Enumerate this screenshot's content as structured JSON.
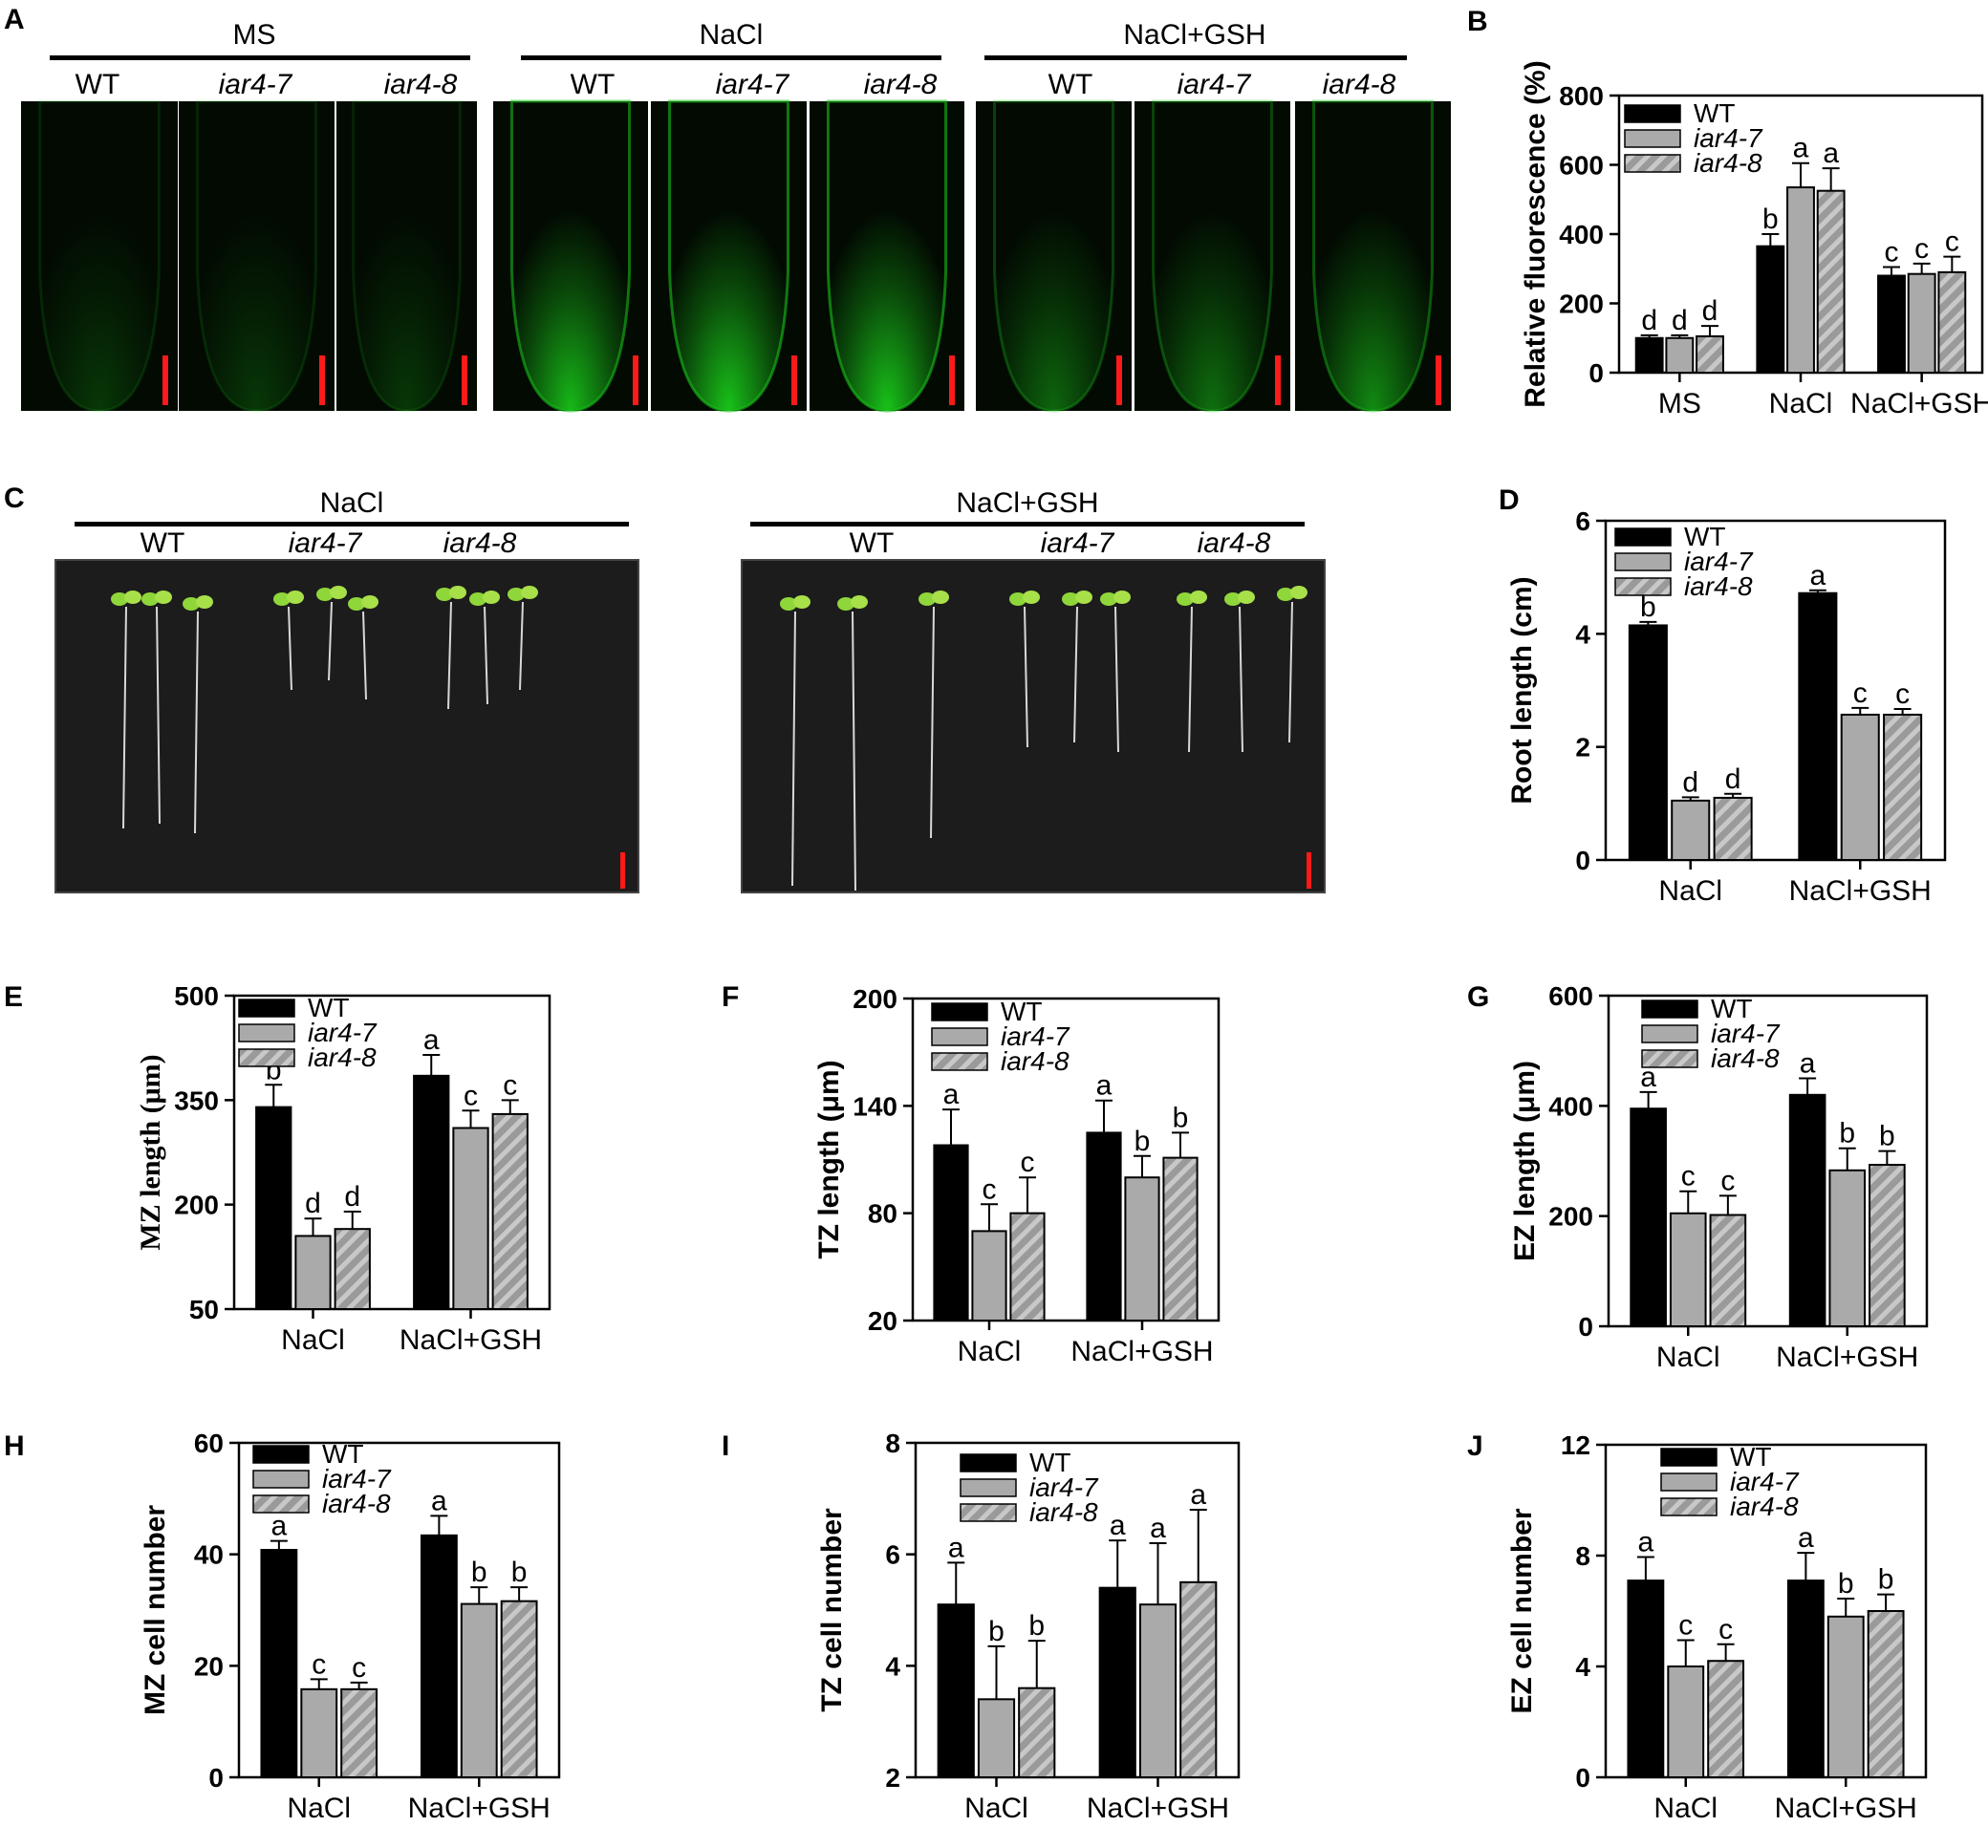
{
  "panel_a": {
    "letter": "A",
    "groups": [
      {
        "label": "MS",
        "genotypes": [
          "WT",
          "iar4-7",
          "iar4-8"
        ]
      },
      {
        "label": "NaCl",
        "genotypes": [
          "WT",
          "iar4-7",
          "iar4-8"
        ]
      },
      {
        "label": "NaCl+GSH",
        "genotypes": [
          "WT",
          "iar4-7",
          "iar4-8"
        ]
      }
    ]
  },
  "panel_c": {
    "letter": "C",
    "groups": [
      {
        "label": "NaCl",
        "genotypes": [
          "WT",
          "iar4-7",
          "iar4-8"
        ]
      },
      {
        "label": "NaCl+GSH",
        "genotypes": [
          "WT",
          "iar4-7",
          "iar4-8"
        ]
      }
    ]
  },
  "colors": {
    "fluorescence": "#19c219",
    "scale_bar": "#ff1a1a",
    "plate": "#1c1c1c",
    "wt_bar": "#000000",
    "mutant_bar": "#aaaaaa"
  },
  "chart_data": [
    {
      "id": "B",
      "letter": "B",
      "type": "bar",
      "categories": [
        "MS",
        "NaCl",
        "NaCl+GSH"
      ],
      "ylabel": "Relative fluorescence (%)",
      "ylabel_bold": true,
      "ylim": [
        0,
        800
      ],
      "yticks": [
        0,
        200,
        400,
        600,
        800
      ],
      "legend": [
        "WT",
        "iar4-7",
        "iar4-8"
      ],
      "series": [
        {
          "name": "WT",
          "values": [
            100,
            365,
            280
          ],
          "errors": [
            8,
            35,
            25
          ],
          "letters": [
            "d",
            "b",
            "c"
          ]
        },
        {
          "name": "iar4-7",
          "values": [
            100,
            535,
            285
          ],
          "errors": [
            8,
            70,
            30
          ],
          "letters": [
            "d",
            "a",
            "c"
          ]
        },
        {
          "name": "iar4-8",
          "values": [
            105,
            525,
            290
          ],
          "errors": [
            30,
            65,
            45
          ],
          "letters": [
            "d",
            "a",
            "c"
          ]
        }
      ]
    },
    {
      "id": "D",
      "letter": "D",
      "type": "bar",
      "categories": [
        "NaCl",
        "NaCl+GSH"
      ],
      "ylabel": "Root length (cm)",
      "ylabel_bold": true,
      "ylim": [
        0,
        6
      ],
      "yticks": [
        0,
        2,
        4,
        6
      ],
      "legend": [
        "WT",
        "iar4-7",
        "iar4-8"
      ],
      "series": [
        {
          "name": "WT",
          "values": [
            4.15,
            4.72
          ],
          "errors": [
            0.06,
            0.05
          ],
          "letters": [
            "b",
            "a"
          ]
        },
        {
          "name": "iar4-7",
          "values": [
            1.05,
            2.57
          ],
          "errors": [
            0.06,
            0.12
          ],
          "letters": [
            "d",
            "c"
          ]
        },
        {
          "name": "iar4-8",
          "values": [
            1.1,
            2.57
          ],
          "errors": [
            0.07,
            0.1
          ],
          "letters": [
            "d",
            "c"
          ]
        }
      ]
    },
    {
      "id": "E",
      "letter": "E",
      "type": "bar",
      "categories": [
        "NaCl",
        "NaCl+GSH"
      ],
      "ylabel": "MZ length (μm)",
      "ylabel_bold": true,
      "ylabel_serif": true,
      "ylim": [
        50,
        500
      ],
      "yticks": [
        50,
        200,
        350,
        500
      ],
      "legend": [
        "WT",
        "iar4-7",
        "iar4-8"
      ],
      "series": [
        {
          "name": "WT",
          "values": [
            340,
            385
          ],
          "errors": [
            32,
            30
          ],
          "letters": [
            "b",
            "a"
          ]
        },
        {
          "name": "iar4-7",
          "values": [
            155,
            310
          ],
          "errors": [
            25,
            25
          ],
          "letters": [
            "d",
            "c"
          ]
        },
        {
          "name": "iar4-8",
          "values": [
            165,
            330
          ],
          "errors": [
            25,
            20
          ],
          "letters": [
            "d",
            "c"
          ]
        }
      ]
    },
    {
      "id": "F",
      "letter": "F",
      "type": "bar",
      "categories": [
        "NaCl",
        "NaCl+GSH"
      ],
      "ylabel": "TZ length (μm)",
      "ylabel_bold": true,
      "ylim": [
        20,
        200
      ],
      "yticks": [
        20,
        80,
        140,
        200
      ],
      "legend": [
        "WT",
        "iar4-7",
        "iar4-8"
      ],
      "series": [
        {
          "name": "WT",
          "values": [
            118,
            125
          ],
          "errors": [
            20,
            18
          ],
          "letters": [
            "a",
            "a"
          ]
        },
        {
          "name": "iar4-7",
          "values": [
            70,
            100
          ],
          "errors": [
            15,
            12
          ],
          "letters": [
            "c",
            "b"
          ]
        },
        {
          "name": "iar4-8",
          "values": [
            80,
            111
          ],
          "errors": [
            20,
            14
          ],
          "letters": [
            "c",
            "b"
          ]
        }
      ]
    },
    {
      "id": "G",
      "letter": "G",
      "type": "bar",
      "categories": [
        "NaCl",
        "NaCl+GSH"
      ],
      "ylabel": "EZ length (μm)",
      "ylabel_bold": true,
      "ylim": [
        0,
        600
      ],
      "yticks": [
        0,
        200,
        400,
        600
      ],
      "legend": [
        "WT",
        "iar4-7",
        "iar4-8"
      ],
      "series": [
        {
          "name": "WT",
          "values": [
            395,
            420
          ],
          "errors": [
            30,
            30
          ],
          "letters": [
            "a",
            "a"
          ]
        },
        {
          "name": "iar4-7",
          "values": [
            205,
            283
          ],
          "errors": [
            40,
            40
          ],
          "letters": [
            "c",
            "b"
          ]
        },
        {
          "name": "iar4-8",
          "values": [
            202,
            293
          ],
          "errors": [
            35,
            25
          ],
          "letters": [
            "c",
            "b"
          ]
        }
      ]
    },
    {
      "id": "H",
      "letter": "H",
      "type": "bar",
      "categories": [
        "NaCl",
        "NaCl+GSH"
      ],
      "ylabel": "MZ cell number",
      "ylabel_bold": true,
      "ylim": [
        0,
        60
      ],
      "yticks": [
        0,
        20,
        40,
        60
      ],
      "legend": [
        "WT",
        "iar4-7",
        "iar4-8"
      ],
      "series": [
        {
          "name": "WT",
          "values": [
            40.8,
            43.4
          ],
          "errors": [
            1.6,
            3.5
          ],
          "letters": [
            "a",
            "a"
          ]
        },
        {
          "name": "iar4-7",
          "values": [
            15.8,
            31.1
          ],
          "errors": [
            1.8,
            3.0
          ],
          "letters": [
            "c",
            "b"
          ]
        },
        {
          "name": "iar4-8",
          "values": [
            15.8,
            31.6
          ],
          "errors": [
            1.2,
            2.5
          ],
          "letters": [
            "c",
            "b"
          ]
        }
      ]
    },
    {
      "id": "I",
      "letter": "I",
      "type": "bar",
      "categories": [
        "NaCl",
        "NaCl+GSH"
      ],
      "ylabel": "TZ cell number",
      "ylabel_bold": true,
      "ylim": [
        2,
        8
      ],
      "yticks": [
        2,
        4,
        6,
        8
      ],
      "legend": [
        "WT",
        "iar4-7",
        "iar4-8"
      ],
      "series": [
        {
          "name": "WT",
          "values": [
            5.1,
            5.4
          ],
          "errors": [
            0.75,
            0.85
          ],
          "letters": [
            "a",
            "a"
          ]
        },
        {
          "name": "iar4-7",
          "values": [
            3.4,
            5.1
          ],
          "errors": [
            0.95,
            1.1
          ],
          "letters": [
            "b",
            "a"
          ]
        },
        {
          "name": "iar4-8",
          "values": [
            3.6,
            5.5
          ],
          "errors": [
            0.85,
            1.3
          ],
          "letters": [
            "b",
            "a"
          ]
        }
      ]
    },
    {
      "id": "J",
      "letter": "J",
      "type": "bar",
      "categories": [
        "NaCl",
        "NaCl+GSH"
      ],
      "ylabel": "EZ cell number",
      "ylabel_bold": true,
      "ylim": [
        0,
        12
      ],
      "yticks": [
        0,
        4,
        8,
        12
      ],
      "legend": [
        "WT",
        "iar4-7",
        "iar4-8"
      ],
      "series": [
        {
          "name": "WT",
          "values": [
            7.1,
            7.1
          ],
          "errors": [
            0.85,
            1.0
          ],
          "letters": [
            "a",
            "a"
          ]
        },
        {
          "name": "iar4-7",
          "values": [
            4.0,
            5.8
          ],
          "errors": [
            0.95,
            0.65
          ],
          "letters": [
            "c",
            "b"
          ]
        },
        {
          "name": "iar4-8",
          "values": [
            4.2,
            6.0
          ],
          "errors": [
            0.6,
            0.6
          ],
          "letters": [
            "c",
            "b"
          ]
        }
      ]
    }
  ]
}
